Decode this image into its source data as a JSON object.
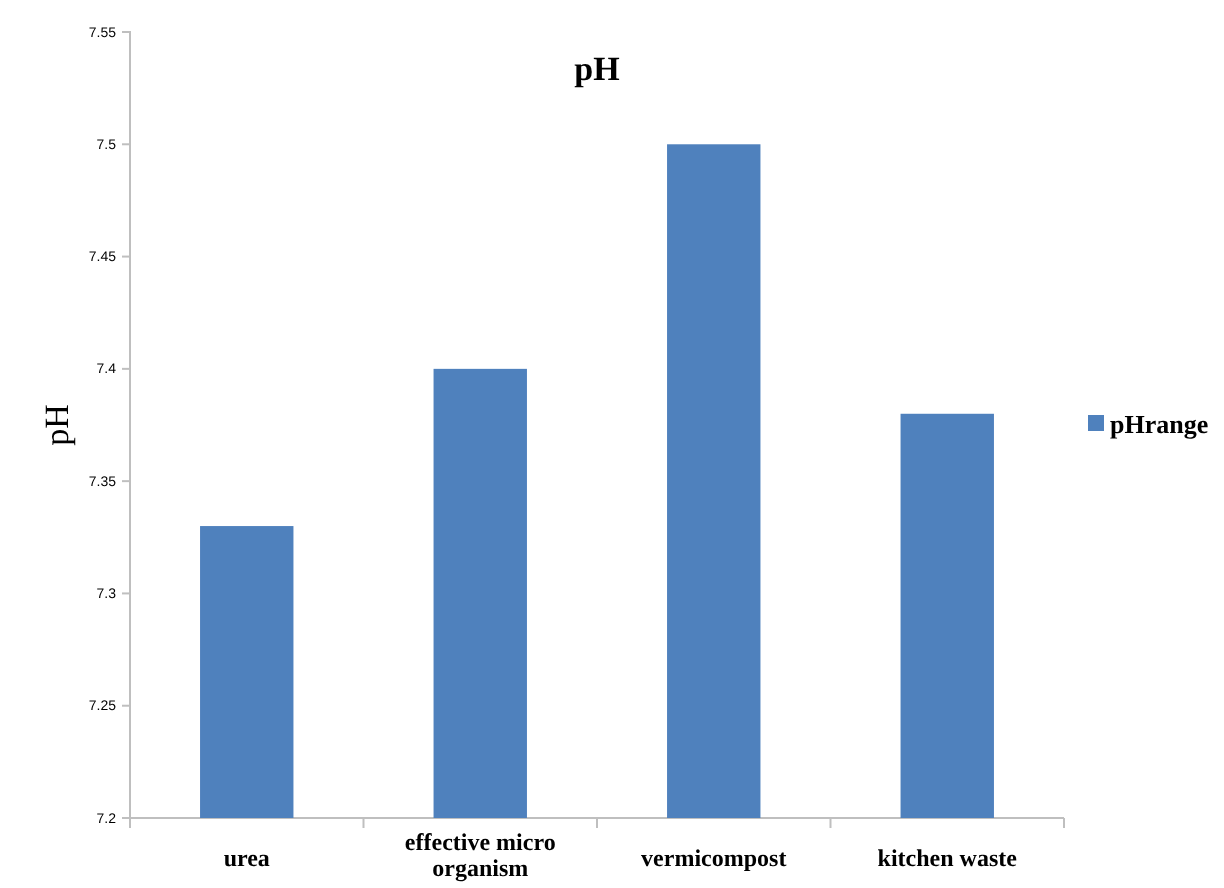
{
  "chart_data": {
    "type": "bar",
    "title": "pH",
    "ylabel": "pH",
    "categories": [
      "urea",
      "effective micro organism",
      "vermicompost",
      "kitchen waste"
    ],
    "series": [
      {
        "name": "pHrange",
        "color": "#4f81bd",
        "values": [
          7.33,
          7.4,
          7.5,
          7.38
        ]
      }
    ],
    "ylim": [
      7.2,
      7.55
    ],
    "yticks": [
      7.2,
      7.25,
      7.3,
      7.35,
      7.4,
      7.45,
      7.5,
      7.55
    ],
    "grid": false,
    "legend": "right"
  }
}
